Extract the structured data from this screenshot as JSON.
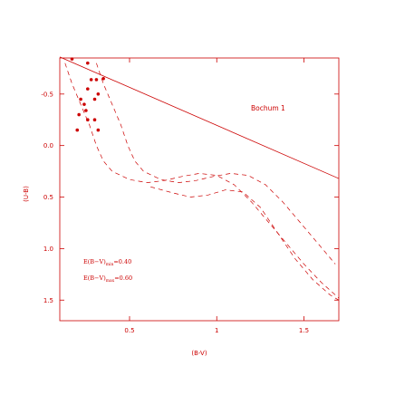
{
  "chart_data": {
    "type": "scatter",
    "title": "",
    "xlabel": "(B-V)",
    "ylabel": "(U-B)",
    "xlim": [
      0.1,
      1.7
    ],
    "ylim": [
      1.7,
      -0.85
    ],
    "y_inverted": true,
    "grid": false,
    "x_ticks": [
      0.5,
      1.0,
      1.5
    ],
    "x_tick_labels": [
      "0.5",
      "1",
      "1.5"
    ],
    "y_ticks": [
      -0.5,
      0.0,
      0.5,
      1.0,
      1.5
    ],
    "y_tick_labels": [
      "-0.5",
      "0.0",
      "0.5",
      "1.0",
      "1.5"
    ],
    "color": "#cc0000",
    "annotations": {
      "cluster": "Bochum 1",
      "emin_prefix": "E(B−V)",
      "emin_sub": "min",
      "emin_value": "=0.40",
      "emax_prefix": "E(B−V)",
      "emax_sub": "max",
      "emax_value": "=0.60"
    },
    "points": [
      {
        "x": 0.17,
        "y": -0.84
      },
      {
        "x": 0.28,
        "y": -0.64
      },
      {
        "x": 0.31,
        "y": -0.64
      },
      {
        "x": 0.35,
        "y": -0.65
      },
      {
        "x": 0.32,
        "y": -0.5
      },
      {
        "x": 0.26,
        "y": -0.55
      },
      {
        "x": 0.3,
        "y": -0.45
      },
      {
        "x": 0.22,
        "y": -0.45
      },
      {
        "x": 0.24,
        "y": -0.4
      },
      {
        "x": 0.25,
        "y": -0.34
      },
      {
        "x": 0.21,
        "y": -0.3
      },
      {
        "x": 0.26,
        "y": -0.25
      },
      {
        "x": 0.3,
        "y": -0.25
      },
      {
        "x": 0.2,
        "y": -0.15
      },
      {
        "x": 0.32,
        "y": -0.15
      },
      {
        "x": 0.26,
        "y": -0.8
      }
    ],
    "reddening_line": [
      {
        "x": 0.1,
        "y": -0.86
      },
      {
        "x": 1.7,
        "y": 0.32
      }
    ],
    "series": [
      {
        "style": "dashed",
        "points": [
          [
            0.13,
            -0.8
          ],
          [
            0.17,
            -0.6
          ],
          [
            0.22,
            -0.4
          ],
          [
            0.27,
            -0.2
          ],
          [
            0.31,
            0.0
          ],
          [
            0.35,
            0.15
          ],
          [
            0.4,
            0.25
          ],
          [
            0.5,
            0.33
          ],
          [
            0.6,
            0.36
          ],
          [
            0.7,
            0.34
          ],
          [
            0.8,
            0.3
          ],
          [
            0.9,
            0.27
          ],
          [
            1.0,
            0.29
          ],
          [
            1.1,
            0.38
          ],
          [
            1.2,
            0.55
          ],
          [
            1.3,
            0.75
          ],
          [
            1.4,
            0.95
          ],
          [
            1.5,
            1.15
          ],
          [
            1.6,
            1.33
          ],
          [
            1.7,
            1.48
          ]
        ]
      },
      {
        "style": "dashed",
        "points": [
          [
            0.31,
            -0.8
          ],
          [
            0.35,
            -0.6
          ],
          [
            0.4,
            -0.4
          ],
          [
            0.45,
            -0.2
          ],
          [
            0.49,
            0.0
          ],
          [
            0.53,
            0.15
          ],
          [
            0.58,
            0.25
          ],
          [
            0.68,
            0.33
          ],
          [
            0.78,
            0.36
          ],
          [
            0.88,
            0.34
          ],
          [
            0.98,
            0.3
          ],
          [
            1.08,
            0.27
          ],
          [
            1.18,
            0.29
          ],
          [
            1.28,
            0.38
          ],
          [
            1.38,
            0.55
          ],
          [
            1.48,
            0.75
          ],
          [
            1.58,
            0.95
          ],
          [
            1.68,
            1.15
          ]
        ]
      },
      {
        "style": "dashed",
        "points": [
          [
            0.62,
            0.4
          ],
          [
            0.75,
            0.46
          ],
          [
            0.85,
            0.5
          ],
          [
            0.95,
            0.48
          ],
          [
            1.05,
            0.43
          ],
          [
            1.15,
            0.45
          ],
          [
            1.25,
            0.6
          ],
          [
            1.35,
            0.85
          ],
          [
            1.45,
            1.1
          ],
          [
            1.55,
            1.3
          ],
          [
            1.65,
            1.45
          ],
          [
            1.7,
            1.5
          ]
        ]
      }
    ]
  }
}
